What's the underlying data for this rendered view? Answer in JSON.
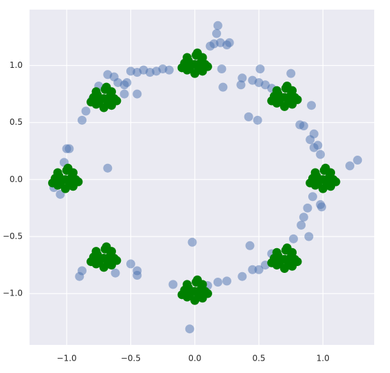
{
  "chart_data": {
    "type": "scatter",
    "xlim": [
      -1.29,
      1.4
    ],
    "ylim": [
      -1.45,
      1.49
    ],
    "xticks": [
      {
        "value": -1,
        "label": "−1.0"
      },
      {
        "value": -0.5,
        "label": "−0.5"
      },
      {
        "value": 0,
        "label": "0.0"
      },
      {
        "value": 0.5,
        "label": "0.5"
      },
      {
        "value": 1,
        "label": "1.0"
      }
    ],
    "yticks": [
      {
        "value": -1,
        "label": "−1.0"
      },
      {
        "value": -0.5,
        "label": "−0.5"
      },
      {
        "value": 0,
        "label": "0.0"
      },
      {
        "value": 0.5,
        "label": "0.5"
      },
      {
        "value": 1,
        "label": "1.0"
      }
    ],
    "grid": true,
    "background": "#eaeaf2",
    "series": [
      {
        "color": "#4c72b0",
        "opacity": 0.5,
        "x": [
          0.18,
          0.17,
          0.2,
          0.25,
          0.27,
          0.15,
          0.12,
          0.21,
          -0.1,
          -0.2,
          -0.25,
          -0.3,
          -0.35,
          -0.4,
          -0.45,
          -0.5,
          -0.55,
          -0.6,
          -0.63,
          -0.68,
          -0.75,
          -0.8,
          -0.85,
          -0.88,
          -0.55,
          -1.0,
          -0.98,
          -1.02,
          -0.68,
          -1.1,
          -1.05,
          -0.9,
          -0.88,
          -0.5,
          -0.45,
          -0.45,
          -0.62,
          -0.02,
          -0.04,
          -0.17,
          0.1,
          0.18,
          0.25,
          0.37,
          0.43,
          0.45,
          0.5,
          0.55,
          0.6,
          0.77,
          0.83,
          0.85,
          0.88,
          0.89,
          0.98,
          0.99,
          0.92,
          1.21,
          1.27,
          0.98,
          0.93,
          0.96,
          0.9,
          0.93,
          0.82,
          0.85,
          0.91,
          0.75,
          0.6,
          0.55,
          0.5,
          0.45,
          0.36,
          0.37,
          0.42,
          0.49,
          0.51,
          0.22,
          -0.45,
          -0.53
        ],
        "values": [
          1.35,
          1.28,
          1.2,
          1.18,
          1.2,
          1.19,
          1.17,
          0.97,
          0.98,
          0.96,
          0.97,
          0.95,
          0.94,
          0.96,
          0.94,
          0.95,
          0.75,
          0.85,
          0.9,
          0.92,
          0.82,
          0.7,
          0.6,
          0.52,
          0.83,
          0.27,
          0.27,
          0.15,
          0.1,
          -0.07,
          -0.13,
          -0.85,
          -0.8,
          -0.74,
          -0.8,
          -0.84,
          -0.82,
          -0.55,
          -1.31,
          -0.92,
          -0.93,
          -0.9,
          -0.89,
          -0.85,
          -0.58,
          -0.79,
          -0.79,
          -0.75,
          -0.65,
          -0.52,
          -0.4,
          -0.33,
          -0.25,
          -0.5,
          -0.22,
          -0.24,
          -0.15,
          0.12,
          0.17,
          0.22,
          0.28,
          0.3,
          0.35,
          0.4,
          0.48,
          0.47,
          0.65,
          0.93,
          0.8,
          0.83,
          0.85,
          0.87,
          0.83,
          0.89,
          0.55,
          0.52,
          0.97,
          0.81,
          0.75,
          0.85
        ]
      },
      {
        "color": "#008000",
        "opacity": 1,
        "x": [
          1.0,
          1.05,
          0.95,
          1.03,
          0.96,
          1.08,
          0.92,
          1.01,
          1.0,
          1.06,
          0.94,
          1.06,
          0.94,
          1.1,
          0.9,
          1.02,
          0.7,
          0.75,
          0.65,
          0.73,
          0.66,
          0.78,
          0.62,
          0.71,
          0.7,
          0.76,
          0.64,
          0.76,
          0.64,
          0.8,
          0.6,
          0.72,
          0,
          0.05,
          -0.05,
          0.03,
          -0.04,
          0.08,
          -0.08,
          0.01,
          0,
          0.06,
          -0.06,
          0.06,
          -0.06,
          0.1,
          -0.1,
          0.02,
          -0.71,
          -0.66,
          -0.76,
          -0.68,
          -0.75,
          -0.63,
          -0.79,
          -0.7,
          -0.71,
          -0.65,
          -0.77,
          -0.65,
          -0.77,
          -0.61,
          -0.81,
          -0.69,
          -1.01,
          -0.96,
          -1.06,
          -0.98,
          -1.05,
          -0.93,
          -1.09,
          -1.0,
          -1.01,
          -0.95,
          -1.07,
          -0.95,
          -1.07,
          -0.91,
          -1.11,
          -0.99,
          -0.71,
          -0.66,
          -0.76,
          -0.68,
          -0.75,
          -0.63,
          -0.79,
          -0.7,
          -0.71,
          -0.65,
          -0.77,
          -0.65,
          -0.77,
          -0.61,
          -0.81,
          -0.69,
          0,
          0.05,
          -0.05,
          0.03,
          -0.04,
          0.08,
          -0.08,
          0.01,
          0,
          0.06,
          -0.06,
          0.06,
          -0.06,
          0.1,
          -0.1,
          0.02,
          0.7,
          0.75,
          0.65,
          0.73,
          0.66,
          0.78,
          0.62,
          0.71,
          0.7,
          0.76,
          0.64,
          0.76,
          0.64,
          0.8,
          0.6,
          0.72
        ],
        "values": [
          0,
          0.02,
          0.03,
          -0.05,
          -0.04,
          0,
          0.01,
          0.08,
          -0.08,
          0.06,
          0.06,
          -0.06,
          -0.05,
          -0.02,
          -0.03,
          0.1,
          0.72,
          0.74,
          0.75,
          0.67,
          0.68,
          0.72,
          0.73,
          0.8,
          0.64,
          0.78,
          0.78,
          0.66,
          0.67,
          0.7,
          0.69,
          0.82,
          1.01,
          1.03,
          1.04,
          0.96,
          0.97,
          1.01,
          1.02,
          1.09,
          0.93,
          1.07,
          1.07,
          0.95,
          0.96,
          0.99,
          0.98,
          1.11,
          0.71,
          0.73,
          0.74,
          0.66,
          0.67,
          0.71,
          0.72,
          0.79,
          0.63,
          0.77,
          0.77,
          0.65,
          0.66,
          0.69,
          0.68,
          0.81,
          0,
          0.02,
          0.03,
          -0.05,
          -0.04,
          0,
          0.01,
          0.08,
          -0.08,
          0.06,
          0.06,
          -0.06,
          -0.05,
          -0.02,
          -0.03,
          0.1,
          -0.69,
          -0.67,
          -0.66,
          -0.74,
          -0.73,
          -0.69,
          -0.68,
          -0.61,
          -0.77,
          -0.63,
          -0.63,
          -0.75,
          -0.74,
          -0.71,
          -0.72,
          -0.59,
          -0.98,
          -0.96,
          -0.95,
          -1.03,
          -1.02,
          -0.98,
          -0.97,
          -0.9,
          -1.06,
          -0.92,
          -0.92,
          -1.04,
          -1.03,
          -1.0,
          -1.01,
          -0.88,
          -0.7,
          -0.68,
          -0.67,
          -0.75,
          -0.74,
          -0.7,
          -0.69,
          -0.62,
          -0.78,
          -0.64,
          -0.64,
          -0.76,
          -0.75,
          -0.72,
          -0.73,
          -0.6
        ]
      }
    ]
  }
}
